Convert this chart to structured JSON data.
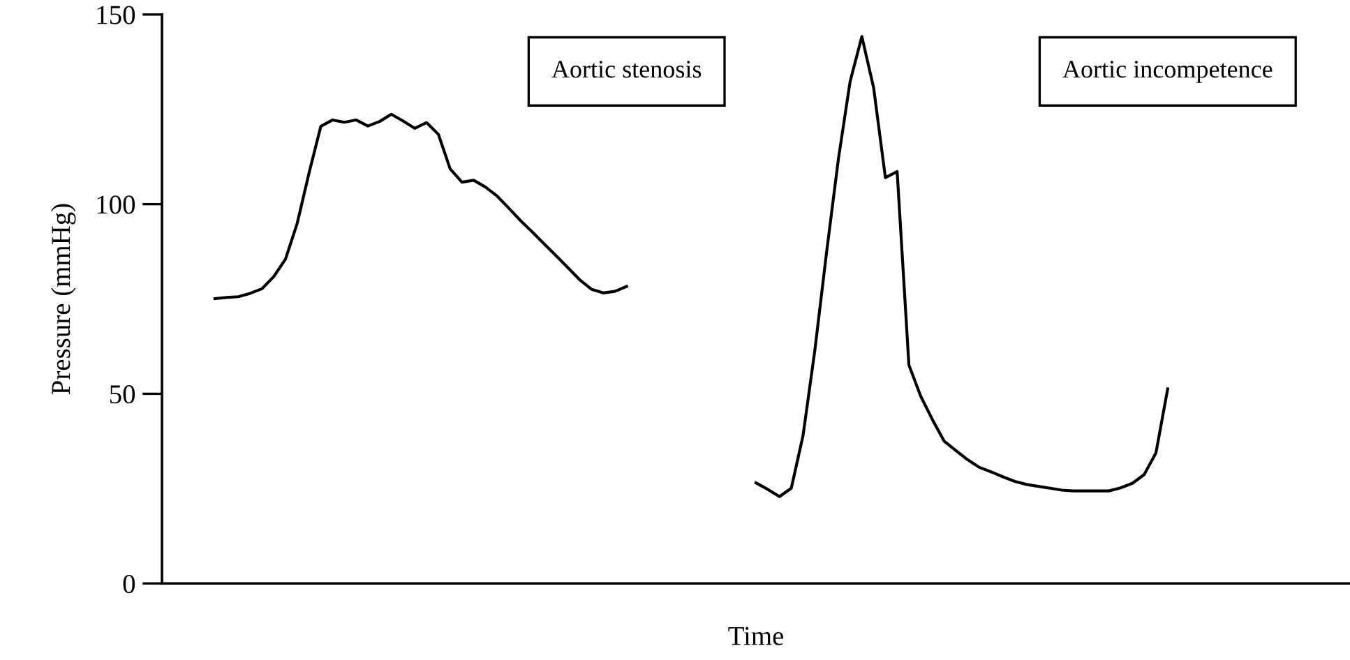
{
  "chart_data": {
    "type": "line",
    "xlabel": "Time",
    "ylabel": "Pressure (mmHg)",
    "categories": [
      null,
      null,
      null,
      null,
      null,
      null,
      null,
      null,
      null,
      null,
      null,
      null,
      null,
      null,
      null,
      null,
      null,
      null,
      null,
      null,
      null,
      null,
      null,
      null,
      null,
      null,
      null,
      null,
      null,
      null,
      null,
      null,
      null,
      null,
      null,
      null,
      null,
      null,
      null,
      null,
      null,
      null,
      null,
      null,
      null,
      null,
      null,
      null,
      null,
      null,
      null,
      null,
      null,
      null,
      null,
      null,
      null,
      null,
      null,
      null,
      null,
      null,
      null,
      null,
      null,
      null,
      null,
      null,
      null,
      null,
      null,
      null,
      null,
      null,
      null,
      null,
      null,
      null,
      null,
      null,
      null,
      null,
      null,
      null,
      null,
      null,
      null,
      null,
      null,
      null,
      null,
      null,
      null,
      null,
      null,
      null,
      null,
      null,
      null,
      null,
      null
    ],
    "ylim": [
      0,
      150
    ],
    "yticks": [
      0,
      50,
      100,
      150
    ],
    "tick_labels": "y",
    "grid": false,
    "legend": false,
    "marker": "none",
    "line_style": "solid",
    "series": [
      {
        "name": "Aortic stenosis",
        "color": "#000000",
        "values": [
          null,
          null,
          null,
          null,
          75.1,
          75.4,
          75.6,
          76.5,
          77.7,
          80.9,
          85.5,
          95,
          108.2,
          120.5,
          122.2,
          121.6,
          122.2,
          120.6,
          121.8,
          123.7,
          121.9,
          120,
          121.5,
          118.4,
          109.3,
          105.8,
          106.3,
          104.5,
          102.1,
          98.9,
          95.6,
          92.6,
          89.5,
          86.4,
          83.3,
          80.1,
          77.6,
          76.6,
          77,
          78.3,
          null,
          null,
          null,
          null,
          null,
          null,
          null,
          null,
          null,
          null,
          null,
          null,
          null,
          null,
          null,
          null,
          null,
          null,
          null,
          null,
          null,
          null,
          null,
          null,
          null,
          null,
          null,
          null,
          null,
          null,
          null,
          null,
          null,
          null,
          null,
          null,
          null,
          null,
          null,
          null,
          null,
          null,
          null,
          null,
          null,
          null,
          null,
          null,
          null,
          null,
          null,
          null,
          null,
          null,
          null,
          null,
          null,
          null,
          null,
          null,
          null
        ]
      },
      {
        "name": "Aortic incompetence",
        "color": "#000000",
        "values": [
          null,
          null,
          null,
          null,
          null,
          null,
          null,
          null,
          null,
          null,
          null,
          null,
          null,
          null,
          null,
          null,
          null,
          null,
          null,
          null,
          null,
          null,
          null,
          null,
          null,
          null,
          null,
          null,
          null,
          null,
          null,
          null,
          null,
          null,
          null,
          null,
          null,
          null,
          null,
          null,
          null,
          null,
          null,
          null,
          null,
          null,
          null,
          null,
          null,
          null,
          26.5,
          24.8,
          22.9,
          25.1,
          39,
          61.4,
          87.3,
          111.8,
          132.3,
          144.2,
          130.7,
          107,
          108.6,
          57.6,
          49.4,
          43.2,
          37.5,
          35,
          32.6,
          30.6,
          29.4,
          28.1,
          26.9,
          26.1,
          25.6,
          25.1,
          24.6,
          24.4,
          24.4,
          24.4,
          24.4,
          25.2,
          26.4,
          28.7,
          34.4,
          51.3,
          null,
          null,
          null,
          null,
          null,
          null,
          null,
          null,
          null,
          null,
          null,
          null,
          null,
          null,
          null
        ]
      }
    ]
  }
}
